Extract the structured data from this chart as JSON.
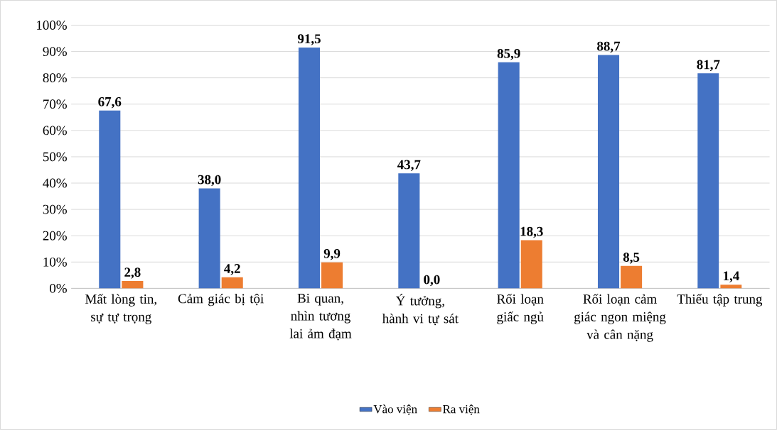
{
  "chart_data": {
    "type": "bar",
    "categories": [
      "Mất lòng tin, sự tự trọng",
      "Cảm giác bị tội",
      "Bi quan, nhìn tương lai ảm đạm",
      "Ý tưởng, hành vi tự sát",
      "Rối loạn giấc ngủ",
      "Rối loạn cảm giác ngon miệng và cân nặng",
      "Thiếu tập trung"
    ],
    "series": [
      {
        "name": "Vào viện",
        "color": "#4472c4",
        "values": [
          67.6,
          38.0,
          91.5,
          43.7,
          85.9,
          88.7,
          81.7
        ],
        "value_labels": [
          "67,6",
          "38,0",
          "91,5",
          "43,7",
          "85,9",
          "88,7",
          "81,7"
        ]
      },
      {
        "name": "Ra viện",
        "color": "#ed7d31",
        "values": [
          2.8,
          4.2,
          9.9,
          0.0,
          18.3,
          8.5,
          1.4
        ],
        "value_labels": [
          "2,8",
          "4,2",
          "9,9",
          "0,0",
          "18,3",
          "8,5",
          "1,4"
        ]
      }
    ],
    "ylim": [
      0,
      100
    ],
    "yticks": [
      {
        "value": 0,
        "label": "0%"
      },
      {
        "value": 10,
        "label": "10%"
      },
      {
        "value": 20,
        "label": "20%"
      },
      {
        "value": 30,
        "label": "30%"
      },
      {
        "value": 40,
        "label": "40%"
      },
      {
        "value": 50,
        "label": "50%"
      },
      {
        "value": 60,
        "label": "60%"
      },
      {
        "value": 70,
        "label": "70%"
      },
      {
        "value": 80,
        "label": "80%"
      },
      {
        "value": 90,
        "label": "90%"
      },
      {
        "value": 100,
        "label": "100%"
      }
    ],
    "grid": "y",
    "legend": "bottom"
  }
}
